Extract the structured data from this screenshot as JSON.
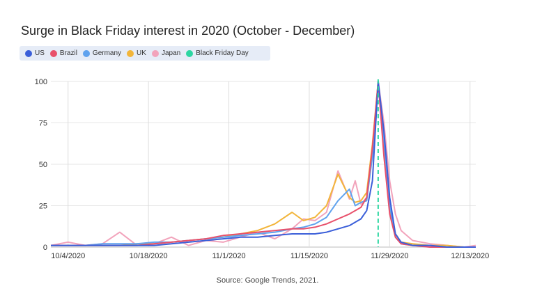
{
  "chart_data": {
    "type": "line",
    "title": "Surge in Black Friday interest in 2020 (October - December)",
    "source": "Source: Google Trends, 2021.",
    "x_tick_labels": [
      "10/4/2020",
      "10/18/2020",
      "11/1/2020",
      "11/15/2020",
      "11/29/2020",
      "12/13/2020"
    ],
    "x_range": [
      "2020-10-01",
      "2020-12-14"
    ],
    "y_ticks": [
      0,
      25,
      50,
      75,
      100
    ],
    "ylim": [
      0,
      100
    ],
    "grid": {
      "horizontal": true,
      "vertical": true
    },
    "legend_position": "top-left",
    "x": [
      "2020-10-01",
      "2020-10-04",
      "2020-10-07",
      "2020-10-10",
      "2020-10-13",
      "2020-10-16",
      "2020-10-19",
      "2020-10-22",
      "2020-10-25",
      "2020-10-28",
      "2020-10-31",
      "2020-11-03",
      "2020-11-06",
      "2020-11-09",
      "2020-11-12",
      "2020-11-14",
      "2020-11-16",
      "2020-11-18",
      "2020-11-20",
      "2020-11-22",
      "2020-11-23",
      "2020-11-24",
      "2020-11-25",
      "2020-11-26",
      "2020-11-27",
      "2020-11-28",
      "2020-11-29",
      "2020-11-30",
      "2020-12-01",
      "2020-12-03",
      "2020-12-06",
      "2020-12-09",
      "2020-12-12",
      "2020-12-14"
    ],
    "series": [
      {
        "name": "US",
        "color": "#3b5fd9",
        "values": [
          1,
          1,
          1,
          1,
          1,
          1,
          1,
          2,
          3,
          4,
          5,
          6,
          6,
          7,
          8,
          8,
          8,
          9,
          11,
          13,
          15,
          17,
          22,
          40,
          100,
          70,
          30,
          8,
          3,
          1,
          1,
          0,
          0,
          0
        ]
      },
      {
        "name": "Brazil",
        "color": "#e8506b",
        "values": [
          1,
          1,
          1,
          1,
          1,
          1,
          2,
          3,
          4,
          5,
          7,
          8,
          9,
          10,
          11,
          11,
          12,
          14,
          17,
          20,
          22,
          24,
          30,
          60,
          100,
          55,
          20,
          6,
          2,
          1,
          0,
          0,
          0,
          0
        ]
      },
      {
        "name": "Germany",
        "color": "#5fa2ee",
        "values": [
          1,
          1,
          1,
          2,
          2,
          2,
          3,
          3,
          4,
          5,
          6,
          7,
          8,
          9,
          11,
          12,
          14,
          18,
          28,
          35,
          25,
          27,
          28,
          55,
          100,
          65,
          25,
          6,
          2,
          1,
          1,
          0,
          0,
          0
        ]
      },
      {
        "name": "UK",
        "color": "#f2b53a",
        "values": [
          1,
          1,
          1,
          1,
          1,
          2,
          2,
          3,
          4,
          5,
          6,
          8,
          10,
          14,
          21,
          16,
          18,
          25,
          44,
          30,
          27,
          28,
          33,
          62,
          100,
          60,
          22,
          8,
          3,
          2,
          1,
          1,
          0,
          0
        ]
      },
      {
        "name": "Japan",
        "color": "#f2a3bb",
        "values": [
          1,
          3,
          1,
          2,
          9,
          1,
          2,
          6,
          1,
          4,
          3,
          6,
          9,
          5,
          11,
          17,
          16,
          21,
          46,
          29,
          40,
          26,
          30,
          58,
          100,
          75,
          40,
          20,
          10,
          4,
          2,
          1,
          0,
          1
        ]
      },
      {
        "name": "Black Friday Day",
        "color": "#2dd6a2",
        "x": "2020-11-27",
        "marker": "vertical-dashed-line"
      }
    ]
  }
}
